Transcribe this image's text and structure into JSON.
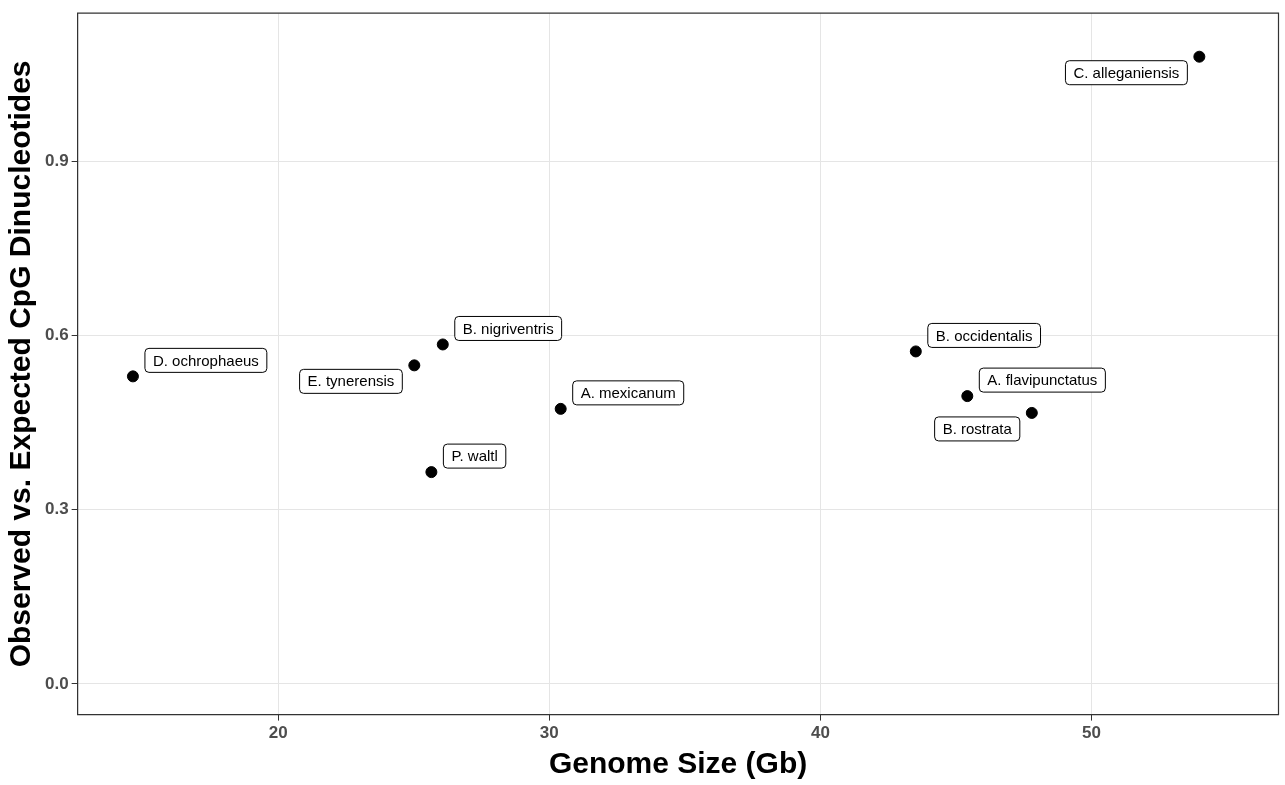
{
  "chart_data": {
    "type": "scatter",
    "xlabel": "Genome Size (Gb)",
    "ylabel": "Observed vs. Expected CpG Dinucleotides",
    "series": [
      {
        "color": "#000000",
        "x": [
          14.64,
          25.02,
          26.07,
          25.65,
          30.42,
          43.52,
          45.42,
          47.8,
          53.98
        ],
        "values": [
          0.53,
          0.549,
          0.585,
          0.365,
          0.474,
          0.573,
          0.496,
          0.467,
          1.081
        ]
      }
    ],
    "xlim": [
      12.6,
      56.9
    ],
    "xticks": [
      20,
      30,
      40,
      50
    ],
    "ylim": [
      -0.053,
      1.156
    ],
    "yticks": [
      {
        "value": 0,
        "label": "0.0"
      },
      {
        "value": 0.3,
        "label": "0.3"
      },
      {
        "value": 0.6,
        "label": "0.6"
      },
      {
        "value": 0.9,
        "label": "0.9"
      }
    ],
    "grid": true,
    "legend": false,
    "marker": "circle",
    "annotations": [
      {
        "text": "D. ochrophaeus",
        "x": 14.64,
        "y": 0.53
      },
      {
        "text": "E. tynerensis",
        "x": 25.02,
        "y": 0.549
      },
      {
        "text": "B. nigriventris",
        "x": 26.07,
        "y": 0.585
      },
      {
        "text": "P. waltl",
        "x": 25.65,
        "y": 0.365
      },
      {
        "text": "A. mexicanum",
        "x": 30.42,
        "y": 0.474
      },
      {
        "text": "B. occidentalis",
        "x": 43.52,
        "y": 0.573
      },
      {
        "text": "A. flavipunctatus",
        "x": 45.42,
        "y": 0.496
      },
      {
        "text": "B. rostrata",
        "x": 47.8,
        "y": 0.467
      },
      {
        "text": "C. alleganiensis",
        "x": 53.98,
        "y": 1.081
      }
    ]
  }
}
